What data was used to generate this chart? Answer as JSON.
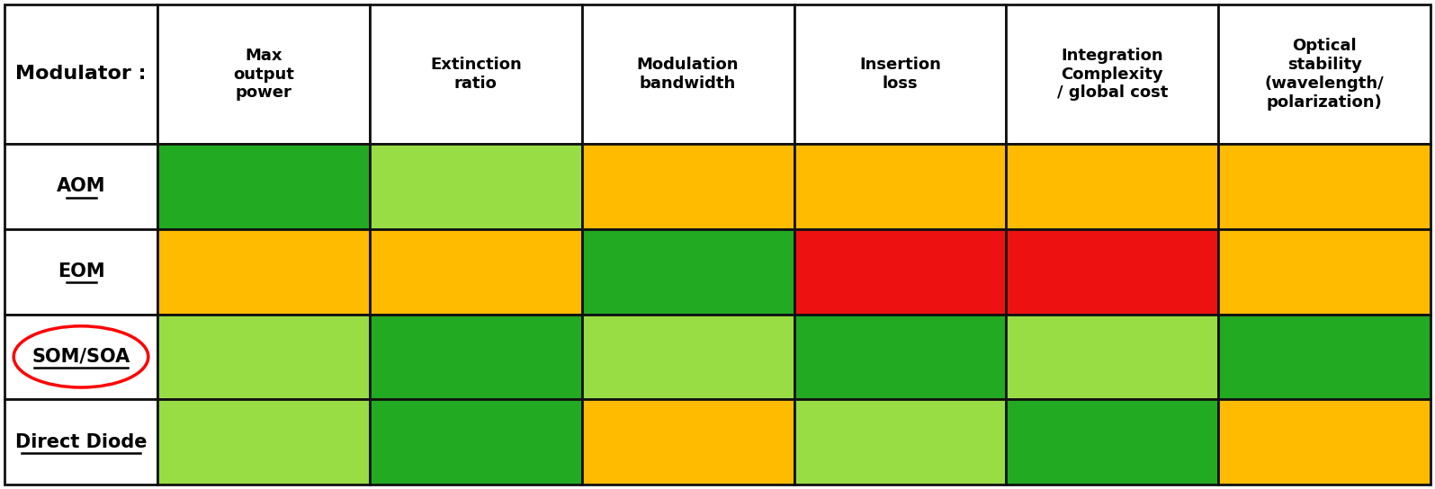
{
  "col_headers": [
    "Max\noutput\npower",
    "Extinction\nratio",
    "Modulation\nbandwidth",
    "Insertion\nloss",
    "Integration\nComplexity\n/ global cost",
    "Optical\nstability\n(wavelength/\npolarization)"
  ],
  "row_labels": [
    "AOM",
    "EOM",
    "SOM/SOA",
    "Direct Diode"
  ],
  "cell_colors": [
    [
      "#22aa22",
      "#99dd44",
      "#ffbb00",
      "#ffbb00",
      "#ffbb00",
      "#ffbb00"
    ],
    [
      "#ffbb00",
      "#ffbb00",
      "#22aa22",
      "#ee1111",
      "#ee1111",
      "#ffbb00"
    ],
    [
      "#99dd44",
      "#22aa22",
      "#99dd44",
      "#22aa22",
      "#99dd44",
      "#22aa22"
    ],
    [
      "#99dd44",
      "#22aa22",
      "#ffbb00",
      "#99dd44",
      "#22aa22",
      "#ffbb00"
    ]
  ],
  "border_color": "#111111",
  "border_width": 2.0,
  "header_fontsize": 13,
  "label_fontsize": 15,
  "modulator_fontsize": 16
}
